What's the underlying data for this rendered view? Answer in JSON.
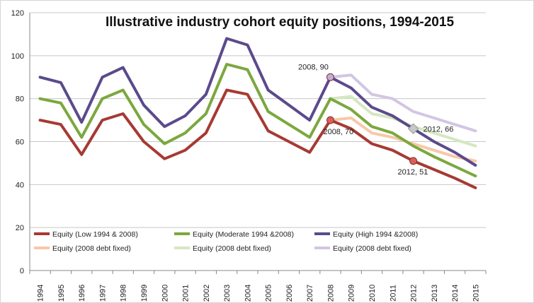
{
  "chart_data": {
    "type": "line",
    "title": "Illustrative industry cohort equity positions, 1994-2015",
    "xlabel": "",
    "ylabel": "",
    "ylim": [
      0,
      120
    ],
    "yticks": [
      0,
      20,
      40,
      60,
      80,
      100,
      120
    ],
    "grid": true,
    "legend_position": "bottom",
    "x": [
      1994,
      1995,
      1996,
      1997,
      1998,
      1999,
      2000,
      2001,
      2002,
      2003,
      2004,
      2005,
      2006,
      2007,
      2008,
      2009,
      2010,
      2011,
      2012,
      2013,
      2014,
      2015
    ],
    "series": [
      {
        "name": "Equity (Low 1994 & 2008)",
        "color": "#a63a33",
        "x": [
          1994,
          1995,
          1996,
          1997,
          1998,
          1999,
          2000,
          2001,
          2002,
          2003,
          2004,
          2005,
          2006,
          2007,
          2008,
          2009,
          2010,
          2011,
          2012,
          2013,
          2014,
          2015
        ],
        "values": [
          70,
          68,
          54,
          70,
          73,
          60,
          52,
          56,
          64,
          84,
          82,
          65,
          60,
          55,
          70,
          66,
          59,
          56,
          51,
          47,
          43,
          38.5
        ]
      },
      {
        "name": "Equity (Moderate 1994 &2008)",
        "color": "#7ba83e",
        "x": [
          1994,
          1995,
          1996,
          1997,
          1998,
          1999,
          2000,
          2001,
          2002,
          2003,
          2004,
          2005,
          2006,
          2007,
          2008,
          2009,
          2010,
          2011,
          2012,
          2013,
          2014,
          2015
        ],
        "values": [
          80,
          78,
          62,
          80,
          84,
          68,
          59,
          64,
          73,
          96,
          93.5,
          74,
          68,
          62,
          80,
          75,
          67,
          64,
          58,
          53,
          48.5,
          44
        ]
      },
      {
        "name": "Equity (High 1994 &2008)",
        "color": "#5b4a8c",
        "x": [
          1994,
          1995,
          1996,
          1997,
          1998,
          1999,
          2000,
          2001,
          2002,
          2003,
          2004,
          2005,
          2006,
          2007,
          2008,
          2009,
          2010,
          2011,
          2012,
          2013,
          2014,
          2015
        ],
        "values": [
          90,
          87.5,
          69,
          90,
          94.5,
          77,
          67,
          72,
          82,
          108,
          105,
          84,
          77,
          70,
          90,
          85,
          76,
          72,
          66,
          60,
          55,
          49
        ]
      },
      {
        "name": "Equity (2008 debt fixed)",
        "color": "#f7c8a8",
        "x": [
          2008,
          2009,
          2010,
          2011,
          2012,
          2013,
          2014,
          2015
        ],
        "values": [
          70,
          71,
          64,
          62,
          59,
          56,
          53,
          51
        ]
      },
      {
        "name": "Equity (2008 debt fixed)",
        "color": "#d4e8c0",
        "x": [
          2008,
          2009,
          2010,
          2011,
          2012,
          2013,
          2014,
          2015
        ],
        "values": [
          80,
          81,
          73,
          71,
          67,
          64,
          61,
          58
        ]
      },
      {
        "name": "Equity (2008 debt fixed)",
        "color": "#d2c6e3",
        "x": [
          2008,
          2009,
          2010,
          2011,
          2012,
          2013,
          2014,
          2015
        ],
        "values": [
          90,
          91,
          82,
          80,
          74,
          71,
          68,
          65
        ]
      }
    ],
    "annotations": [
      {
        "text": "2008, 90",
        "x": 2008,
        "y": 90,
        "marker_color": "#bcb0d8"
      },
      {
        "text": "2008, 70",
        "x": 2008,
        "y": 70,
        "marker_color": "#d9605a"
      },
      {
        "text": "2012, 66",
        "x": 2012,
        "y": 66,
        "marker_color": "#c7c7c7"
      },
      {
        "text": "2012, 51",
        "x": 2012,
        "y": 51,
        "marker_color": "#d9605a"
      }
    ]
  }
}
